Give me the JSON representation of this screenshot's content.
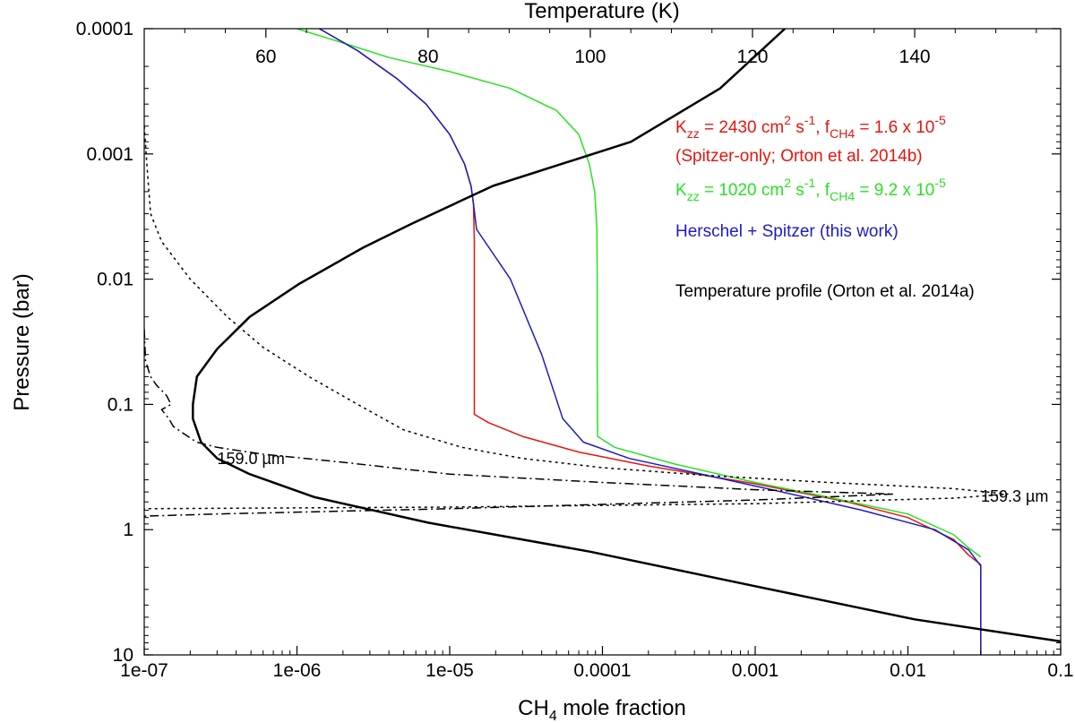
{
  "chart_data": {
    "type": "line",
    "title": "",
    "xlabel": "CH4 mole fraction",
    "xlabel_parts": {
      "main": "CH",
      "sub": "4",
      "rest": " mole fraction"
    },
    "ylabel": "Pressure (bar)",
    "x2label": "Temperature (K)",
    "x_scale": "log",
    "y_scale": "log",
    "y_inverted": true,
    "xlim": [
      1e-07,
      0.1
    ],
    "ylim": [
      10,
      0.0001
    ],
    "x2lim": [
      45,
      158
    ],
    "x_ticks": [
      {
        "value": 1e-07,
        "label": "1e-07"
      },
      {
        "value": 1e-06,
        "label": "1e-06"
      },
      {
        "value": 1e-05,
        "label": "1e-05"
      },
      {
        "value": 0.0001,
        "label": "0.0001"
      },
      {
        "value": 0.001,
        "label": "0.001"
      },
      {
        "value": 0.01,
        "label": "0.01"
      },
      {
        "value": 0.1,
        "label": "0.1"
      }
    ],
    "y_ticks": [
      {
        "value": 0.0001,
        "label": "0.0001"
      },
      {
        "value": 0.001,
        "label": "0.001"
      },
      {
        "value": 0.01,
        "label": "0.01"
      },
      {
        "value": 0.1,
        "label": "0.1"
      },
      {
        "value": 1,
        "label": "1"
      },
      {
        "value": 10,
        "label": "10"
      }
    ],
    "x2_ticks": [
      {
        "value": 60,
        "label": "60"
      },
      {
        "value": 80,
        "label": "80"
      },
      {
        "value": 100,
        "label": "100"
      },
      {
        "value": 120,
        "label": "120"
      },
      {
        "value": 140,
        "label": "140"
      }
    ],
    "grid": false,
    "legend_position": "top-right",
    "legend": [
      {
        "series": "red",
        "lines": [
          [
            {
              "t": "K"
            },
            {
              "t": "zz",
              "sub": true
            },
            {
              "t": " = 2430 cm"
            },
            {
              "t": "2",
              "sup": true
            },
            {
              "t": " s"
            },
            {
              "t": "-1",
              "sup": true
            },
            {
              "t": ", f"
            },
            {
              "t": "CH4",
              "sub": true
            },
            {
              "t": " = 1.6 x 10"
            },
            {
              "t": "-5",
              "sup": true
            }
          ],
          [
            {
              "t": "(Spitzer-only; Orton et al. 2014b)"
            }
          ]
        ]
      },
      {
        "series": "green",
        "lines": [
          [
            {
              "t": "K"
            },
            {
              "t": "zz",
              "sub": true
            },
            {
              "t": " = 1020 cm"
            },
            {
              "t": "2",
              "sup": true
            },
            {
              "t": " s"
            },
            {
              "t": "-1",
              "sup": true
            },
            {
              "t": ", f"
            },
            {
              "t": "CH4",
              "sub": true
            },
            {
              "t": " = 9.2 x 10"
            },
            {
              "t": "-5",
              "sup": true
            }
          ]
        ]
      },
      {
        "series": "blue",
        "lines": [
          [
            {
              "t": "Herschel + Spitzer (this work)"
            }
          ]
        ]
      },
      {
        "series": "temperature",
        "lines": [
          [
            {
              "t": "Temperature profile (Orton et al. 2014a)"
            }
          ]
        ]
      }
    ],
    "annotations": [
      {
        "text": "159.0 µm",
        "x": 5e-07,
        "y": 0.3
      },
      {
        "text": "159.3 µm",
        "x": 0.05,
        "y": 0.6
      }
    ],
    "series": [
      {
        "id": "red",
        "color": "#e8140c",
        "style": "solid",
        "axis": "x",
        "points": [
          [
            1.4e-06,
            0.0001
          ],
          [
            2.5e-06,
            0.00015
          ],
          [
            4.5e-06,
            0.00025
          ],
          [
            7e-06,
            0.0004
          ],
          [
            1e-05,
            0.0007
          ],
          [
            1.25e-05,
            0.0012
          ],
          [
            1.38e-05,
            0.0018
          ],
          [
            1.43e-05,
            0.0025
          ],
          [
            1.45e-05,
            0.005
          ],
          [
            1.45e-05,
            0.03
          ],
          [
            1.45e-05,
            0.12
          ],
          [
            1.8e-05,
            0.14
          ],
          [
            3e-05,
            0.18
          ],
          [
            7e-05,
            0.24
          ],
          [
            0.0002,
            0.31
          ],
          [
            0.001,
            0.43
          ],
          [
            0.004,
            0.6
          ],
          [
            0.01,
            0.8
          ],
          [
            0.02,
            1.2
          ],
          [
            0.025,
            1.6
          ],
          [
            0.03,
            1.9
          ],
          [
            0.03,
            10
          ]
        ]
      },
      {
        "id": "green",
        "color": "#27e222",
        "style": "solid",
        "axis": "x",
        "points": [
          [
            1e-06,
            0.0001
          ],
          [
            2e-06,
            0.00013
          ],
          [
            4e-06,
            0.00017
          ],
          [
            1e-05,
            0.00022
          ],
          [
            2.5e-05,
            0.0003
          ],
          [
            5e-05,
            0.00045
          ],
          [
            7e-05,
            0.0007
          ],
          [
            8.2e-05,
            0.0012
          ],
          [
            8.9e-05,
            0.002
          ],
          [
            9.2e-05,
            0.004
          ],
          [
            9.25e-05,
            0.01
          ],
          [
            9.25e-05,
            0.05
          ],
          [
            9.3e-05,
            0.18
          ],
          [
            0.00012,
            0.22
          ],
          [
            0.0003,
            0.3
          ],
          [
            0.001,
            0.42
          ],
          [
            0.003,
            0.55
          ],
          [
            0.01,
            0.75
          ],
          [
            0.02,
            1.1
          ],
          [
            0.025,
            1.4
          ],
          [
            0.03,
            1.65
          ]
        ]
      },
      {
        "id": "blue",
        "color": "#1c1cc4",
        "style": "solid",
        "axis": "x",
        "points": [
          [
            1.4e-06,
            0.0001
          ],
          [
            2.5e-06,
            0.00015
          ],
          [
            4.5e-06,
            0.00025
          ],
          [
            7e-06,
            0.0004
          ],
          [
            1e-05,
            0.0007
          ],
          [
            1.25e-05,
            0.0012
          ],
          [
            1.38e-05,
            0.0018
          ],
          [
            1.43e-05,
            0.0025
          ],
          [
            1.5e-05,
            0.004
          ],
          [
            2.5e-05,
            0.01
          ],
          [
            4e-05,
            0.04
          ],
          [
            5.5e-05,
            0.13
          ],
          [
            7.5e-05,
            0.2
          ],
          [
            0.00015,
            0.27
          ],
          [
            0.0004,
            0.35
          ],
          [
            0.0015,
            0.5
          ],
          [
            0.005,
            0.7
          ],
          [
            0.015,
            1.0
          ],
          [
            0.025,
            1.45
          ],
          [
            0.03,
            1.95
          ],
          [
            0.03,
            10
          ]
        ]
      },
      {
        "id": "temperature",
        "color": "#000000",
        "style": "solid",
        "width": 2.5,
        "axis": "x2",
        "points": [
          [
            124,
            0.0001
          ],
          [
            116,
            0.0003
          ],
          [
            105,
            0.0008
          ],
          [
            88,
            0.0018
          ],
          [
            78,
            0.0036
          ],
          [
            72,
            0.0056
          ],
          [
            64,
            0.011
          ],
          [
            58,
            0.02
          ],
          [
            54,
            0.036
          ],
          [
            51.5,
            0.06
          ],
          [
            51,
            0.1
          ],
          [
            51,
            0.13
          ],
          [
            52,
            0.2
          ],
          [
            54,
            0.27
          ],
          [
            58,
            0.36
          ],
          [
            66,
            0.55
          ],
          [
            80,
            0.88
          ],
          [
            100,
            1.5
          ],
          [
            120,
            2.8
          ],
          [
            140,
            5.2
          ],
          [
            158,
            7.8
          ]
        ]
      },
      {
        "id": "cf-159.3",
        "color": "#000000",
        "style": "dotted",
        "axis": "x",
        "points": [
          [
            1e-07,
            0.0006
          ],
          [
            1.05e-07,
            0.0014
          ],
          [
            1.1e-07,
            0.003
          ],
          [
            1.3e-07,
            0.005
          ],
          [
            2e-07,
            0.01
          ],
          [
            3.5e-07,
            0.02
          ],
          [
            6e-07,
            0.035
          ],
          [
            1.2e-06,
            0.06
          ],
          [
            2.5e-06,
            0.1
          ],
          [
            5e-06,
            0.16
          ],
          [
            1.2e-05,
            0.22
          ],
          [
            3e-05,
            0.27
          ],
          [
            0.0001,
            0.32
          ],
          [
            0.0005,
            0.37
          ],
          [
            0.003,
            0.42
          ],
          [
            0.02,
            0.47
          ],
          [
            0.045,
            0.52
          ],
          [
            0.02,
            0.56
          ],
          [
            0.001,
            0.62
          ],
          [
            1e-05,
            0.66
          ],
          [
            1e-07,
            0.68
          ]
        ]
      },
      {
        "id": "cf-159.0",
        "color": "#000000",
        "style": "dashdot",
        "axis": "x",
        "points": [
          [
            1e-07,
            0.025
          ],
          [
            1.02e-07,
            0.045
          ],
          [
            1.1e-07,
            0.06
          ],
          [
            1.2e-07,
            0.07
          ],
          [
            1.4e-07,
            0.085
          ],
          [
            1.5e-07,
            0.1
          ],
          [
            1.3e-07,
            0.11
          ],
          [
            1.45e-07,
            0.13
          ],
          [
            1.55e-07,
            0.15
          ],
          [
            1.8e-07,
            0.17
          ],
          [
            2.2e-07,
            0.2
          ],
          [
            3e-07,
            0.22
          ],
          [
            6e-07,
            0.25
          ],
          [
            2e-06,
            0.29
          ],
          [
            1e-05,
            0.36
          ],
          [
            0.0001,
            0.42
          ],
          [
            0.001,
            0.48
          ],
          [
            0.008,
            0.52
          ],
          [
            0.001,
            0.58
          ],
          [
            1e-05,
            0.68
          ],
          [
            3e-07,
            0.75
          ],
          [
            1e-07,
            0.78
          ]
        ]
      }
    ]
  }
}
